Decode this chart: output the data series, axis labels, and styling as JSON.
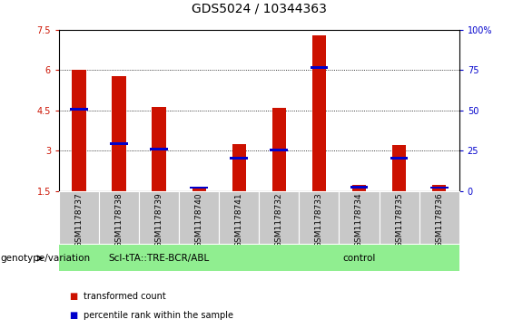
{
  "title": "GDS5024 / 10344363",
  "samples": [
    "GSM1178737",
    "GSM1178738",
    "GSM1178739",
    "GSM1178740",
    "GSM1178741",
    "GSM1178732",
    "GSM1178733",
    "GSM1178734",
    "GSM1178735",
    "GSM1178736"
  ],
  "transformed_count": [
    6.02,
    5.78,
    4.62,
    1.65,
    3.25,
    4.6,
    7.3,
    1.73,
    3.2,
    1.72
  ],
  "percentile_rank": [
    4.55,
    3.25,
    3.05,
    1.62,
    2.7,
    3.02,
    6.1,
    1.65,
    2.7,
    1.62
  ],
  "bar_bottom": 1.5,
  "ylim_left": [
    1.5,
    7.5
  ],
  "ylim_right": [
    0,
    100
  ],
  "yticks_left": [
    1.5,
    3.0,
    4.5,
    6.0,
    7.5
  ],
  "ytick_labels_left": [
    "1.5",
    "3",
    "4.5",
    "6",
    "7.5"
  ],
  "yticks_right": [
    0,
    25,
    50,
    75,
    100
  ],
  "ytick_labels_right": [
    "0",
    "25",
    "50",
    "75",
    "100%"
  ],
  "group1_label": "ScI-tTA::TRE-BCR/ABL",
  "group2_label": "control",
  "group1_count": 5,
  "group2_count": 5,
  "group_label_left": "genotype/variation",
  "bar_color_red": "#CC1100",
  "bar_color_blue": "#0000CC",
  "blue_bar_width": 0.45,
  "red_bar_width": 0.35,
  "title_fontsize": 10,
  "tick_fontsize": 7,
  "label_fontsize": 7.5,
  "legend_red_label": "transformed count",
  "legend_blue_label": "percentile rank within the sample",
  "grid_yticks": [
    3.0,
    4.5,
    6.0
  ],
  "group_color": "#90EE90",
  "sample_bg_color": "#C8C8C8"
}
